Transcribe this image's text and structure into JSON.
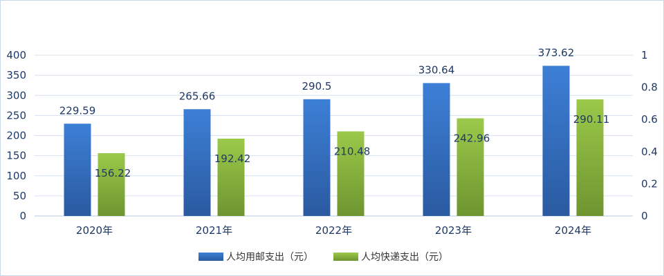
{
  "chart_data": {
    "type": "bar",
    "categories": [
      "2020年",
      "2021年",
      "2022年",
      "2023年",
      "2024年"
    ],
    "series": [
      {
        "name": "人均用邮支出（元）",
        "values": [
          229.59,
          265.66,
          290.5,
          330.64,
          373.62
        ],
        "color": "#3d7fd6",
        "color_dark": "#2a5aa0",
        "axis": "left"
      },
      {
        "name": "人均快递支出（元）",
        "values": [
          156.22,
          192.42,
          210.48,
          242.96,
          290.11
        ],
        "color": "#9bc94a",
        "color_dark": "#6e9530",
        "axis": "left"
      }
    ],
    "y_left": {
      "min": 0,
      "max": 400,
      "ticks": [
        "0",
        "50",
        "100",
        "150",
        "200",
        "250",
        "300",
        "350",
        "400"
      ]
    },
    "y_right": {
      "min": 0,
      "max": 1,
      "ticks": [
        "0",
        "0.2",
        "0.4",
        "0.6",
        "0.8",
        "1"
      ]
    },
    "legend_position": "bottom",
    "grid": true
  }
}
